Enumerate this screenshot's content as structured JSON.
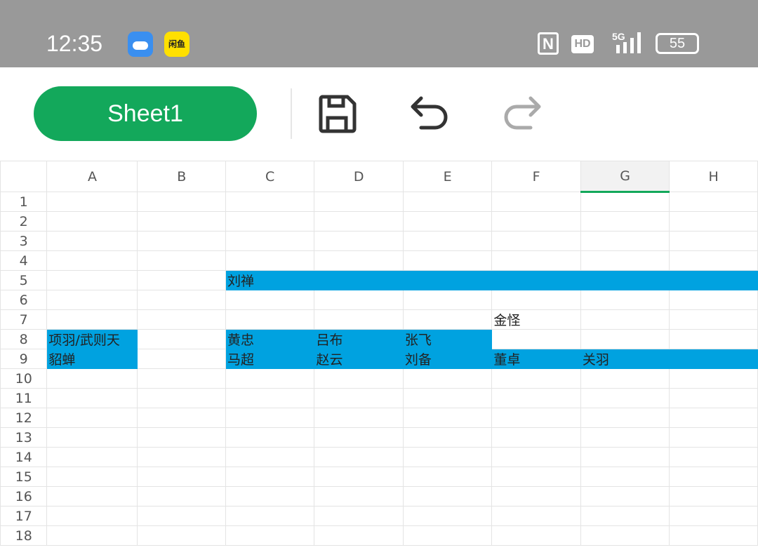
{
  "status_bar": {
    "time": "12:35",
    "apps": [
      "weather-icon",
      "xianyu-icon"
    ],
    "xianyu_label": "闲鱼",
    "nfc": "N",
    "hd": "HD",
    "network": "5G",
    "battery": "55"
  },
  "toolbar": {
    "sheet_name": "Sheet1",
    "save": "save-icon",
    "undo": "undo-icon",
    "redo": "redo-icon"
  },
  "colors": {
    "accent": "#13a85b",
    "fill": "#00a2e0"
  },
  "grid": {
    "columns": [
      "A",
      "B",
      "C",
      "D",
      "E",
      "F",
      "G",
      "H"
    ],
    "selected_column": "G",
    "row_count": 18,
    "cells": {
      "C5": "刘禅",
      "F7": "金怪",
      "A8": "项羽/武则天",
      "C8": "黄忠",
      "D8": "吕布",
      "E8": "张飞",
      "A9": "貂蝉",
      "C9": "马超",
      "D9": "赵云",
      "E9": "刘备",
      "F9": "董卓",
      "G9": "关羽"
    },
    "filled_cells": [
      "C5",
      "D5",
      "E5",
      "F5",
      "G5",
      "H5",
      "A8",
      "C8",
      "D8",
      "E8",
      "A9",
      "C9",
      "D9",
      "E9",
      "F9",
      "G9",
      "H9"
    ]
  }
}
